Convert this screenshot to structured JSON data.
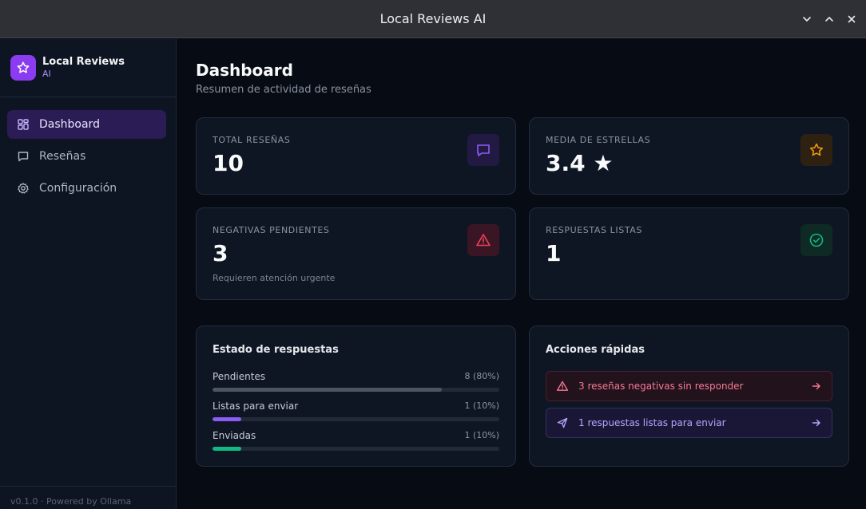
{
  "window": {
    "title": "Local Reviews AI"
  },
  "sidebar": {
    "brand_name": "Local Reviews",
    "brand_sub": "AI",
    "items": [
      {
        "label": "Dashboard",
        "icon": "grid-icon",
        "active": true
      },
      {
        "label": "Reseñas",
        "icon": "message-icon",
        "active": false
      },
      {
        "label": "Configuración",
        "icon": "gear-icon",
        "active": false
      }
    ],
    "footer": "v0.1.0 · Powered by Ollama"
  },
  "header": {
    "title": "Dashboard",
    "subtitle": "Resumen de actividad de reseñas"
  },
  "stats": [
    {
      "label": "TOTAL RESEÑAS",
      "value": "10",
      "note": "",
      "icon": "message-icon",
      "color": "#8b5cf6"
    },
    {
      "label": "MEDIA DE ESTRELLAS",
      "value": "3.4 ★",
      "note": "",
      "icon": "star-icon",
      "color": "#f59e0b"
    },
    {
      "label": "NEGATIVAS PENDIENTES",
      "value": "3",
      "note": "Requieren atención urgente",
      "icon": "warning-icon",
      "color": "#f43f5e"
    },
    {
      "label": "RESPUESTAS LISTAS",
      "value": "1",
      "note": "",
      "icon": "check-circle-icon",
      "color": "#10b981"
    }
  ],
  "status": {
    "title": "Estado de respuestas",
    "rows": [
      {
        "label": "Pendientes",
        "count": "8 (80%)",
        "percent": 80,
        "color": "#4b5563"
      },
      {
        "label": "Listas para enviar",
        "count": "1 (10%)",
        "percent": 10,
        "color": "#8b5cf6"
      },
      {
        "label": "Enviadas",
        "count": "1 (10%)",
        "percent": 10,
        "color": "#10b981"
      }
    ]
  },
  "quick_actions": {
    "title": "Acciones rápidas",
    "items": [
      {
        "label": "3 reseñas negativas sin responder",
        "icon": "warning-icon",
        "kind": "danger"
      },
      {
        "label": "1 respuestas listas para enviar",
        "icon": "send-icon",
        "kind": "info"
      }
    ]
  }
}
